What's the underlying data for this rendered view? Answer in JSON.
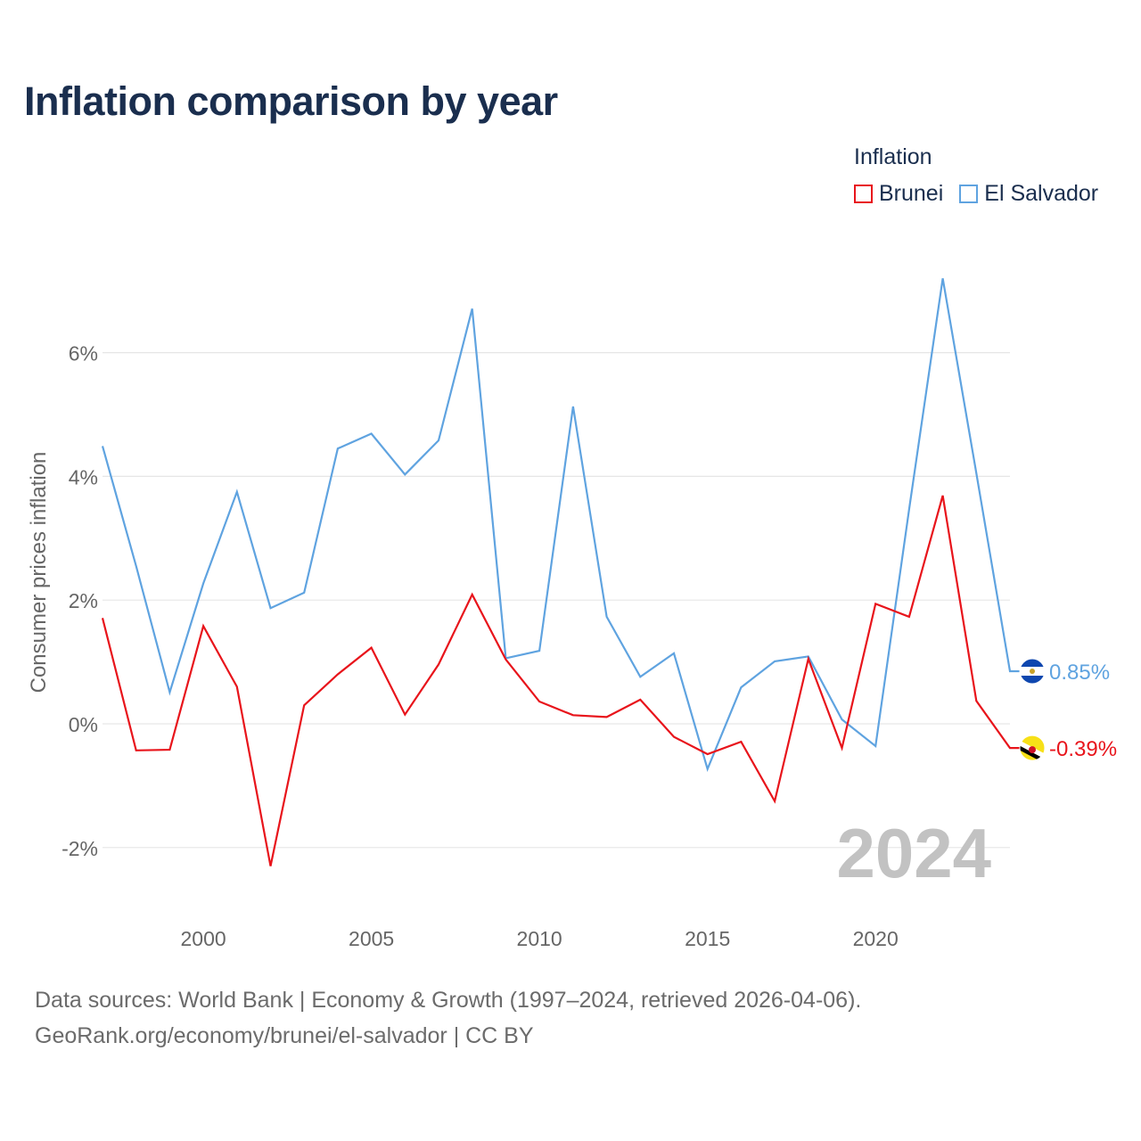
{
  "title": "Inflation comparison by year",
  "legend": {
    "title": "Inflation",
    "items": [
      {
        "label": "Brunei",
        "color": "#e8141b"
      },
      {
        "label": "El Salvador",
        "color": "#5fa3e0"
      }
    ]
  },
  "chart_data": {
    "type": "line",
    "title": "Inflation comparison by year",
    "xlabel": "",
    "ylabel": "Consumer prices inflation",
    "xlim": [
      1997,
      2024
    ],
    "ylim": [
      -3,
      7.5
    ],
    "yticks": [
      -2,
      0,
      2,
      4,
      6
    ],
    "ytick_labels": [
      "-2%",
      "0%",
      "2%",
      "4%",
      "6%"
    ],
    "xticks": [
      2000,
      2005,
      2010,
      2015,
      2020
    ],
    "xtick_labels": [
      "2000",
      "2005",
      "2010",
      "2015",
      "2020"
    ],
    "x": [
      1997,
      1998,
      1999,
      2000,
      2001,
      2002,
      2003,
      2004,
      2005,
      2006,
      2007,
      2008,
      2009,
      2010,
      2011,
      2012,
      2013,
      2014,
      2015,
      2016,
      2017,
      2018,
      2019,
      2020,
      2021,
      2022,
      2023,
      2024
    ],
    "series": [
      {
        "name": "Brunei",
        "color": "#e8141b",
        "values": [
          1.71,
          -0.43,
          -0.42,
          1.58,
          0.6,
          -2.3,
          0.3,
          0.8,
          1.23,
          0.15,
          0.96,
          2.09,
          1.04,
          0.36,
          0.14,
          0.11,
          0.39,
          -0.21,
          -0.49,
          -0.29,
          -1.25,
          1.05,
          -0.39,
          1.94,
          1.73,
          3.69,
          0.37,
          -0.39
        ],
        "end_label": "-0.39%",
        "flag_icon": "brunei-flag-icon"
      },
      {
        "name": "El Salvador",
        "color": "#5fa3e0",
        "values": [
          4.49,
          2.55,
          0.51,
          2.27,
          3.75,
          1.87,
          2.12,
          4.45,
          4.69,
          4.03,
          4.58,
          6.71,
          1.06,
          1.18,
          5.13,
          1.73,
          0.76,
          1.14,
          -0.73,
          0.59,
          1.01,
          1.09,
          0.07,
          -0.36,
          3.47,
          7.2,
          4.05,
          0.85
        ],
        "end_label": "0.85%",
        "flag_icon": "el-salvador-flag-icon"
      }
    ],
    "watermark_year": "2024"
  },
  "footer": {
    "line1": "Data sources: World Bank | Economy & Growth (1997–2024, retrieved 2026-04-06).",
    "line2": "GeoRank.org/economy/brunei/el-salvador | CC BY"
  }
}
